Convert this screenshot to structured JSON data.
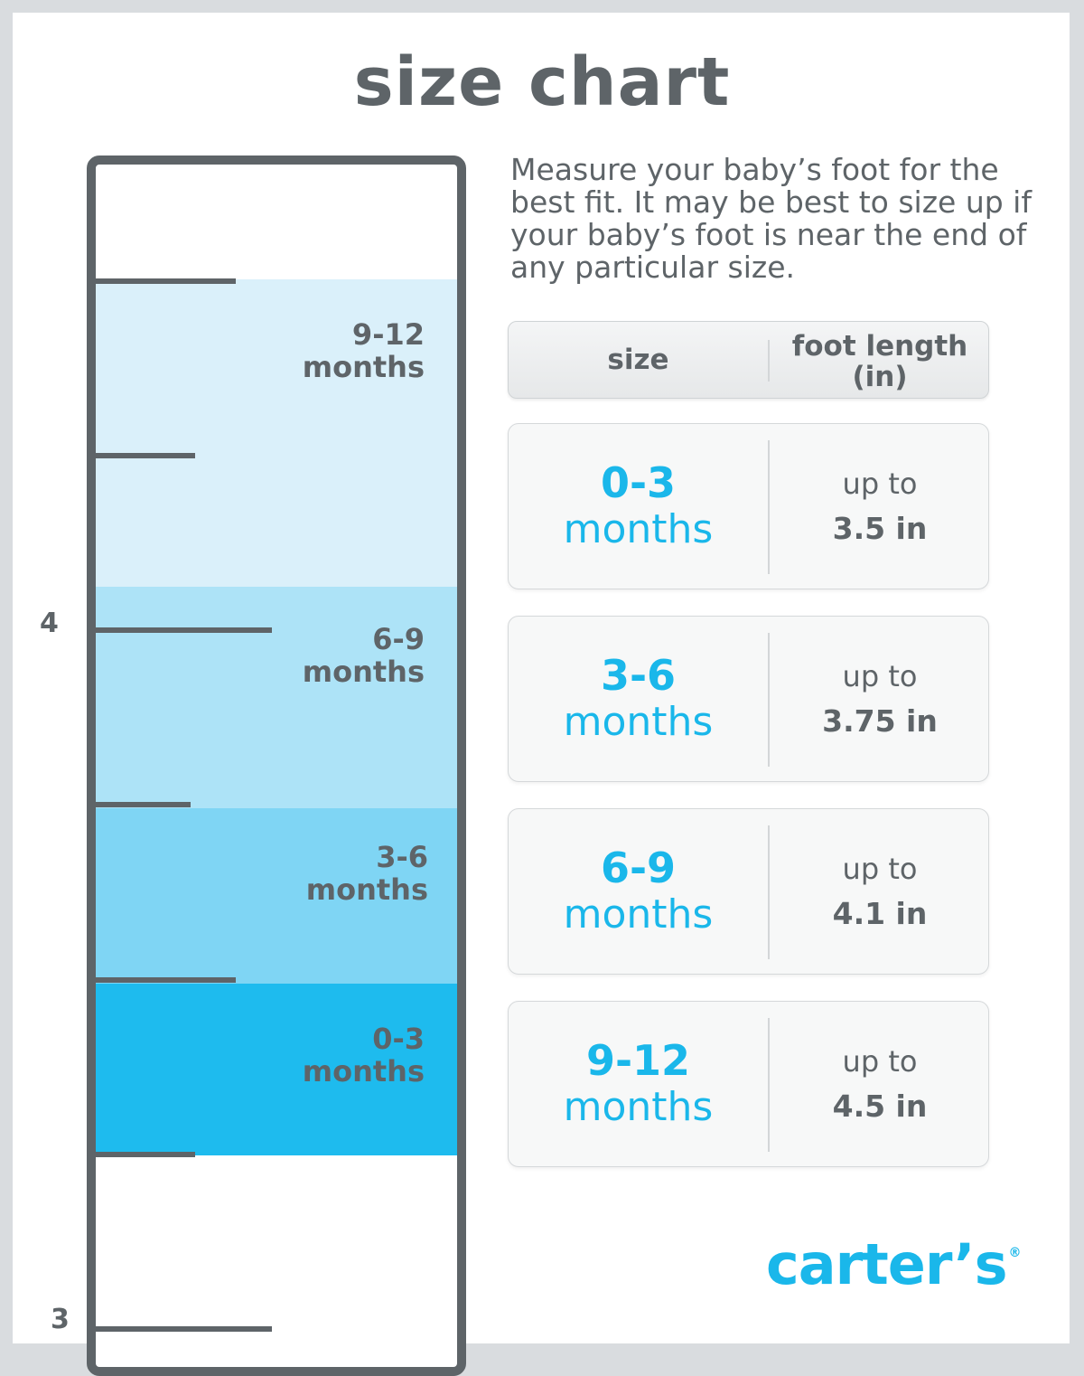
{
  "title": "size chart",
  "intro": "Measure your baby’s foot for the best fit. It may be best to size up if your baby’s foot is near the end of any particular size.",
  "ruler": {
    "numbers": [
      "4",
      "3"
    ],
    "bands": [
      {
        "range": "9-12",
        "unit": "months",
        "color": "#daf0fa"
      },
      {
        "range": "6-9",
        "unit": "months",
        "color": "#ade3f7"
      },
      {
        "range": "3-6",
        "unit": "months",
        "color": "#7fd5f4"
      },
      {
        "range": "0-3",
        "unit": "months",
        "color": "#1ebbee"
      }
    ]
  },
  "table": {
    "header": {
      "size": "size",
      "foot_length": "foot length (in)"
    },
    "rows": [
      {
        "range": "0-3",
        "unit": "months",
        "prefix": "up to",
        "value": "3.5 in"
      },
      {
        "range": "3-6",
        "unit": "months",
        "prefix": "up to",
        "value": "3.75 in"
      },
      {
        "range": "6-9",
        "unit": "months",
        "prefix": "up to",
        "value": "4.1 in"
      },
      {
        "range": "9-12",
        "unit": "months",
        "prefix": "up to",
        "value": "4.5 in"
      }
    ]
  },
  "brand": {
    "name": "carter’s",
    "mark": "®",
    "color": "#1ab7ea"
  }
}
